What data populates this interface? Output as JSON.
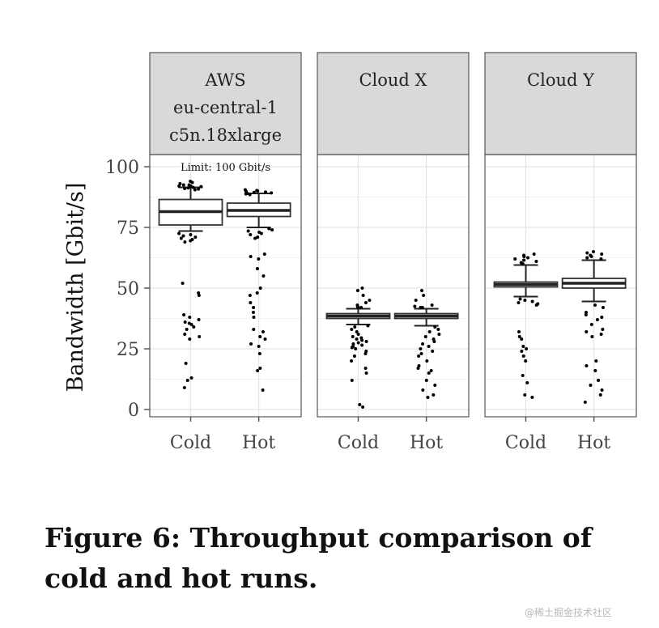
{
  "caption": "Figure 6: Throughput comparison of cold and hot runs.",
  "watermark": "@稀土掘金技术社区",
  "chart_data": {
    "type": "box",
    "ylabel": "Bandwidth [Gbit/s]",
    "xlabel": "",
    "ylim": [
      -3,
      105
    ],
    "yticks": [
      0,
      25,
      50,
      75,
      100
    ],
    "grid": true,
    "annotation": {
      "panel": 0,
      "text": "Limit: 100 Gbit/s"
    },
    "categories": [
      "Cold",
      "Hot"
    ],
    "panels": [
      {
        "title_lines": [
          "AWS",
          "eu-central-1",
          "c5n.18xlarge"
        ],
        "boxes": [
          {
            "category": "Cold",
            "q1": 76,
            "median": 81.5,
            "q3": 86.5,
            "whisker_low": 73.5,
            "whisker_high": 91.5,
            "outliers": [
              94,
              93.5,
              93,
              92.5,
              92.5,
              92,
              92,
              91.8,
              91.5,
              91.3,
              91,
              90.8,
              90.5,
              72.5,
              72,
              71.5,
              71,
              70.5,
              70,
              69.5,
              69,
              52,
              48,
              47,
              39,
              38,
              37,
              36,
              35.5,
              35,
              34,
              33,
              31,
              30,
              29,
              19,
              13,
              12,
              9
            ]
          },
          {
            "category": "Hot",
            "q1": 79.5,
            "median": 82,
            "q3": 85,
            "whisker_low": 75,
            "whisker_high": 89,
            "outliers": [
              90.5,
              90.2,
              90,
              89.8,
              89.6,
              89.4,
              89.2,
              89,
              88.8,
              88.5,
              74.5,
              74,
              73.5,
              73,
              72.5,
              72,
              71,
              70.5,
              64,
              63,
              62,
              58,
              55,
              50,
              48,
              47,
              44,
              42,
              40,
              38,
              33,
              32,
              30,
              29,
              27,
              26,
              23,
              17,
              16,
              8
            ]
          }
        ]
      },
      {
        "title_lines": [
          "Cloud X"
        ],
        "boxes": [
          {
            "category": "Cold",
            "q1": 37.5,
            "median": 38.5,
            "q3": 39.5,
            "whisker_low": 35,
            "whisker_high": 41.5,
            "outliers": [
              50,
              49,
              47,
              45,
              44,
              43,
              42.5,
              42,
              42,
              34.5,
              34,
              33,
              32,
              31,
              30,
              29.5,
              29,
              28.5,
              28,
              27.5,
              27,
              26.5,
              26,
              25.5,
              25,
              24,
              23,
              22,
              20,
              17,
              15,
              12,
              2,
              1
            ]
          },
          {
            "category": "Hot",
            "q1": 37.5,
            "median": 38.5,
            "q3": 39.5,
            "whisker_low": 34.5,
            "whisker_high": 41.5,
            "outliers": [
              49,
              47,
              45,
              43,
              42.5,
              42,
              42,
              34,
              33,
              32,
              31,
              30,
              29,
              28,
              27,
              26,
              25,
              24,
              23,
              22,
              20,
              18,
              17,
              16,
              15,
              12,
              10,
              8,
              6,
              5
            ]
          }
        ]
      },
      {
        "title_lines": [
          "Cloud Y"
        ],
        "boxes": [
          {
            "category": "Cold",
            "q1": 50.5,
            "median": 51.5,
            "q3": 52.5,
            "whisker_low": 46.5,
            "whisker_high": 59.5,
            "outliers": [
              64,
              63.5,
              63,
              62.5,
              62,
              61.5,
              61,
              60.5,
              60,
              45.5,
              45,
              44.5,
              44,
              43.5,
              43,
              32,
              30,
              29,
              26,
              25,
              24,
              22,
              20,
              14,
              11,
              6,
              5
            ]
          },
          {
            "category": "Hot",
            "q1": 50,
            "median": 52,
            "q3": 54,
            "whisker_low": 44.5,
            "whisker_high": 61.5,
            "outliers": [
              65,
              64.5,
              64,
              63.5,
              63,
              62.5,
              62,
              43,
              42,
              40,
              39,
              38,
              37,
              35,
              33,
              32,
              31,
              30,
              20,
              18,
              16,
              12,
              10,
              8,
              6,
              3
            ]
          }
        ]
      }
    ]
  }
}
